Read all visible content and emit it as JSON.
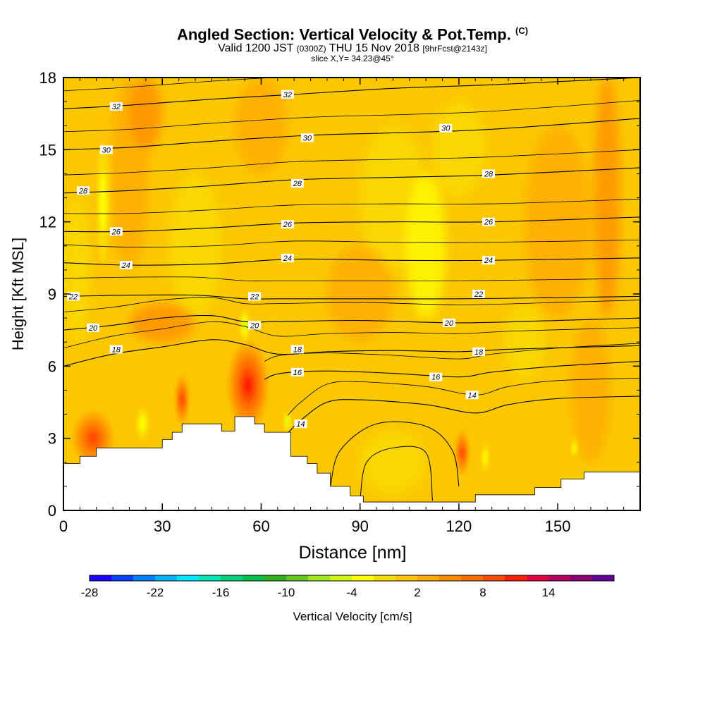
{
  "titles": {
    "main": "Angled Section: Vertical Velocity & Pot.Temp.",
    "copyright": "(C)",
    "valid_prefix": "Valid 1200 JST",
    "valid_utc": "(0300Z)",
    "valid_date": "THU 15 Nov 2018",
    "forecast": "[9hrFcst@2143z]",
    "slice": "slice X,Y= 34.23@45°"
  },
  "chart_data": {
    "type": "heatmap",
    "xlabel": "Distance [nm]",
    "ylabel": "Height [Kft MSL]",
    "xlim": [
      0,
      175
    ],
    "ylim": [
      0,
      18
    ],
    "x_ticks": [
      0,
      30,
      60,
      90,
      120,
      150
    ],
    "y_ticks": [
      0,
      3,
      6,
      9,
      12,
      15,
      18
    ],
    "colorbar": {
      "label": "Vertical Velocity [cm/s]",
      "tick_labels": [
        "-28",
        "-22",
        "-16",
        "-10",
        "-4",
        "2",
        "8",
        "14"
      ],
      "colors": [
        "#1a00ff",
        "#0040ff",
        "#0080ff",
        "#00b4ff",
        "#00e6ff",
        "#00e6b4",
        "#00d278",
        "#00be46",
        "#30b020",
        "#64c81e",
        "#a0e61e",
        "#d2f514",
        "#ffff00",
        "#fadc00",
        "#ffc300",
        "#ffaa00",
        "#ff8c00",
        "#ff6e00",
        "#ff4b00",
        "#ff1e00",
        "#e6003c",
        "#b40064",
        "#8c0078",
        "#640096"
      ]
    },
    "terrain_profile": [
      [
        0,
        1.95
      ],
      [
        5,
        1.95
      ],
      [
        5,
        2.25
      ],
      [
        10,
        2.25
      ],
      [
        10,
        2.6
      ],
      [
        15,
        2.6
      ],
      [
        30,
        2.6
      ],
      [
        30,
        2.95
      ],
      [
        33,
        2.95
      ],
      [
        33,
        3.25
      ],
      [
        36,
        3.25
      ],
      [
        36,
        3.6
      ],
      [
        48,
        3.6
      ],
      [
        48,
        3.3
      ],
      [
        52,
        3.3
      ],
      [
        52,
        3.9
      ],
      [
        58,
        3.9
      ],
      [
        58,
        3.6
      ],
      [
        61,
        3.6
      ],
      [
        61,
        3.25
      ],
      [
        69,
        3.25
      ],
      [
        69,
        2.25
      ],
      [
        74,
        2.25
      ],
      [
        74,
        1.95
      ],
      [
        77,
        1.95
      ],
      [
        77,
        1.55
      ],
      [
        81,
        1.55
      ],
      [
        81,
        1.0
      ],
      [
        87,
        1.0
      ],
      [
        87,
        0.6
      ],
      [
        91,
        0.6
      ],
      [
        91,
        0.35
      ],
      [
        125,
        0.35
      ],
      [
        125,
        0.65
      ],
      [
        143,
        0.65
      ],
      [
        143,
        0.95
      ],
      [
        151,
        0.95
      ],
      [
        151,
        1.3
      ],
      [
        158,
        1.3
      ],
      [
        158,
        1.6
      ],
      [
        175,
        1.6
      ]
    ],
    "updraft_cells": [
      {
        "name": "core",
        "x": 57,
        "y": 4.9,
        "rx": 3,
        "ry": 1.1,
        "value": 16
      },
      {
        "name": "mountain-wave",
        "x": 56,
        "y": 5.2,
        "rx": 6,
        "ry": 1.8,
        "value": 10
      },
      {
        "name": "west-ridge",
        "x": 36,
        "y": 4.6,
        "rx": 2,
        "ry": 1.0,
        "value": 8
      },
      {
        "name": "west-slope",
        "x": 9,
        "y": 3.0,
        "rx": 6,
        "ry": 1.1,
        "value": 7
      },
      {
        "name": "east-plain",
        "x": 121,
        "y": 2.4,
        "rx": 2,
        "ry": 0.9,
        "value": 7
      }
    ],
    "downdraft_cells": [
      {
        "name": "stratosphere-wave",
        "x": 12,
        "y": 12.8,
        "rx": 2.8,
        "ry": 3.8,
        "value": -5
      },
      {
        "name": "lee-lobe",
        "x": 24,
        "y": 3.6,
        "rx": 3,
        "ry": 1.0,
        "value": -6
      },
      {
        "name": "upper-lee",
        "x": 55,
        "y": 7.7,
        "rx": 1.8,
        "ry": 0.9,
        "value": -7
      },
      {
        "name": "east-lee",
        "x": 68,
        "y": 3.7,
        "rx": 1.1,
        "ry": 0.6,
        "value": -7
      },
      {
        "name": "plain-down",
        "x": 128,
        "y": 2.2,
        "rx": 1.2,
        "ry": 1.0,
        "value": -5
      },
      {
        "name": "far-east",
        "x": 155,
        "y": 2.6,
        "rx": 0.6,
        "ry": 0.6,
        "value": -5
      }
    ],
    "isentropes": [
      {
        "theta": 14,
        "points": [
          [
            68,
            3.2
          ],
          [
            72,
            3.75
          ],
          [
            80,
            4.5
          ],
          [
            90,
            4.6
          ],
          [
            110,
            4.4
          ],
          [
            125,
            4.05
          ],
          [
            135,
            4.4
          ],
          [
            150,
            4.65
          ],
          [
            175,
            4.75
          ]
        ]
      },
      {
        "theta": 16,
        "points": [
          [
            61,
            5.45
          ],
          [
            66,
            5.7
          ],
          [
            80,
            5.8
          ],
          [
            100,
            5.7
          ],
          [
            120,
            5.55
          ],
          [
            130,
            5.75
          ],
          [
            150,
            6.0
          ],
          [
            175,
            6.2
          ]
        ]
      },
      {
        "theta": 18,
        "points": [
          [
            0,
            6.0
          ],
          [
            15,
            6.5
          ],
          [
            30,
            6.8
          ],
          [
            45,
            7.1
          ],
          [
            55,
            6.9
          ],
          [
            65,
            6.5
          ],
          [
            80,
            6.6
          ],
          [
            100,
            6.65
          ],
          [
            120,
            6.6
          ],
          [
            135,
            6.7
          ],
          [
            160,
            6.8
          ],
          [
            175,
            6.85
          ]
        ]
      },
      {
        "theta": 20,
        "points": [
          [
            0,
            7.5
          ],
          [
            15,
            7.7
          ],
          [
            30,
            8.0
          ],
          [
            45,
            8.1
          ],
          [
            55,
            7.85
          ],
          [
            65,
            7.85
          ],
          [
            90,
            7.9
          ],
          [
            120,
            7.8
          ],
          [
            150,
            7.9
          ],
          [
            175,
            8.0
          ]
        ]
      },
      {
        "theta": 22,
        "points": [
          [
            0,
            8.9
          ],
          [
            20,
            8.95
          ],
          [
            40,
            8.95
          ],
          [
            55,
            8.8
          ],
          [
            65,
            8.8
          ],
          [
            90,
            8.8
          ],
          [
            120,
            8.8
          ],
          [
            150,
            8.85
          ],
          [
            175,
            8.9
          ]
        ]
      },
      {
        "theta": 24,
        "points": [
          [
            0,
            10.3
          ],
          [
            20,
            10.2
          ],
          [
            45,
            10.25
          ],
          [
            70,
            10.45
          ],
          [
            100,
            10.4
          ],
          [
            130,
            10.4
          ],
          [
            175,
            10.5
          ]
        ]
      },
      {
        "theta": 26,
        "points": [
          [
            0,
            11.6
          ],
          [
            20,
            11.6
          ],
          [
            45,
            11.75
          ],
          [
            70,
            11.95
          ],
          [
            100,
            12.0
          ],
          [
            130,
            12.0
          ],
          [
            175,
            12.2
          ]
        ]
      },
      {
        "theta": 28,
        "points": [
          [
            0,
            13.2
          ],
          [
            20,
            13.3
          ],
          [
            45,
            13.5
          ],
          [
            70,
            13.75
          ],
          [
            100,
            13.85
          ],
          [
            130,
            13.95
          ],
          [
            175,
            14.25
          ]
        ]
      },
      {
        "theta": 30,
        "points": [
          [
            0,
            15.0
          ],
          [
            20,
            15.1
          ],
          [
            45,
            15.35
          ],
          [
            75,
            15.6
          ],
          [
            100,
            15.7
          ],
          [
            130,
            15.85
          ],
          [
            175,
            16.3
          ]
        ]
      },
      {
        "theta": 32,
        "points": [
          [
            0,
            16.7
          ],
          [
            20,
            16.85
          ],
          [
            45,
            17.1
          ],
          [
            70,
            17.3
          ],
          [
            100,
            17.55
          ],
          [
            130,
            17.7
          ],
          [
            175,
            18.0
          ]
        ]
      }
    ],
    "isentrope_labels": [
      {
        "text": "32",
        "x": 16,
        "y": 16.8
      },
      {
        "text": "32",
        "x": 68,
        "y": 17.3
      },
      {
        "text": "30",
        "x": 13,
        "y": 15.0
      },
      {
        "text": "30",
        "x": 74,
        "y": 15.5
      },
      {
        "text": "30",
        "x": 116,
        "y": 15.9
      },
      {
        "text": "28",
        "x": 6,
        "y": 13.3
      },
      {
        "text": "28",
        "x": 71,
        "y": 13.6
      },
      {
        "text": "28",
        "x": 129,
        "y": 14.0
      },
      {
        "text": "26",
        "x": 16,
        "y": 11.6
      },
      {
        "text": "26",
        "x": 68,
        "y": 11.9
      },
      {
        "text": "26",
        "x": 129,
        "y": 12.0
      },
      {
        "text": "24",
        "x": 19,
        "y": 10.2
      },
      {
        "text": "24",
        "x": 68,
        "y": 10.5
      },
      {
        "text": "24",
        "x": 129,
        "y": 10.4
      },
      {
        "text": "22",
        "x": 3,
        "y": 8.9
      },
      {
        "text": "22",
        "x": 58,
        "y": 8.9
      },
      {
        "text": "22",
        "x": 126,
        "y": 9.0
      },
      {
        "text": "20",
        "x": 9,
        "y": 7.6
      },
      {
        "text": "20",
        "x": 58,
        "y": 7.7
      },
      {
        "text": "20",
        "x": 117,
        "y": 7.8
      },
      {
        "text": "18",
        "x": 16,
        "y": 6.7
      },
      {
        "text": "18",
        "x": 71,
        "y": 6.7
      },
      {
        "text": "18",
        "x": 126,
        "y": 6.6
      },
      {
        "text": "16",
        "x": 71,
        "y": 5.75
      },
      {
        "text": "16",
        "x": 113,
        "y": 5.55
      },
      {
        "text": "14",
        "x": 124,
        "y": 4.8
      },
      {
        "text": "14",
        "x": 72,
        "y": 3.6
      }
    ]
  }
}
